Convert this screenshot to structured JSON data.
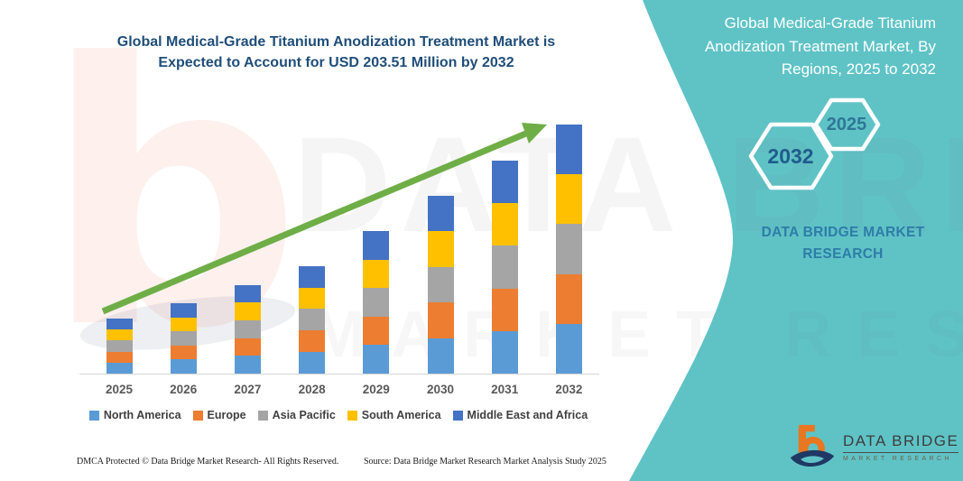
{
  "chart": {
    "title_line1": "Global Medical-Grade Titanium Anodization Treatment Market is",
    "title_line2": "Expected to Account for USD 203.51 Million by 2032"
  },
  "chart_data": {
    "type": "bar",
    "stacked": true,
    "title": "Global Medical-Grade Titanium Anodization Treatment Market is Expected to Account for USD 203.51 Million by 2032",
    "categories": [
      "2025",
      "2026",
      "2027",
      "2028",
      "2029",
      "2030",
      "2031",
      "2032"
    ],
    "totals_usd_million": [
      45.0,
      57.5,
      72.3,
      87.8,
      116.5,
      145.3,
      174.0,
      203.51
    ],
    "series": [
      {
        "name": "North America",
        "color": "#5B9BD5",
        "values": [
          9.0,
          11.5,
          14.5,
          17.6,
          23.3,
          29.1,
          34.8,
          40.7
        ]
      },
      {
        "name": "Europe",
        "color": "#ED7D31",
        "values": [
          9.0,
          11.5,
          14.5,
          17.6,
          23.3,
          29.1,
          34.8,
          40.7
        ]
      },
      {
        "name": "Asia Pacific",
        "color": "#A5A5A5",
        "values": [
          9.0,
          11.5,
          14.5,
          17.6,
          23.3,
          29.1,
          34.8,
          40.7
        ]
      },
      {
        "name": "South America",
        "color": "#FFC000",
        "values": [
          9.0,
          11.5,
          14.5,
          17.5,
          23.3,
          29.0,
          34.8,
          40.7
        ]
      },
      {
        "name": "Middle East and Africa",
        "color": "#4472C4",
        "values": [
          9.0,
          11.5,
          14.3,
          17.5,
          23.3,
          29.0,
          34.8,
          40.71
        ]
      }
    ],
    "xlabel": "",
    "ylabel": "",
    "ylim": [
      0,
      210
    ],
    "grid": false,
    "legend_position": "bottom",
    "annotations": [
      "green upward trend arrow across bars"
    ]
  },
  "side_panel": {
    "title": "Global Medical-Grade Titanium Anodization Treatment Market, By Regions, 2025 to 2032",
    "hexagons": [
      {
        "label": "2032"
      },
      {
        "label": "2025"
      }
    ],
    "brand_line1": "DATA BRIDGE MARKET",
    "brand_line2": "RESEARCH",
    "colors": {
      "panel_teal": "#5FC3C6",
      "hex_border": "#FFFFFF",
      "hex_2032_text": "#1F5C8B",
      "hex_2025_text": "#2F7796",
      "brand_text": "#2E7CA8"
    }
  },
  "brand_logo": {
    "title": "DATA BRIDGE",
    "subtitle": "MARKET RESEARCH",
    "colors": {
      "b_orange": "#E87722",
      "swoosh_navy": "#1F3864"
    }
  },
  "footer": {
    "dmca": "DMCA Protected © Data Bridge Market Research-  All Rights Reserved.",
    "source": "Source: Data Bridge Market Research  Market Analysis Study 2025"
  },
  "watermark": {
    "row1": "DATA BRIDGE",
    "row2": "MARKET RESEARCH"
  },
  "style_colors": {
    "title_blue": "#1F4E79",
    "axis_label_gray": "#595959",
    "legend_text": "#404040",
    "trend_arrow_green": "#6FAE46",
    "axis_line": "#D6D6D6"
  }
}
